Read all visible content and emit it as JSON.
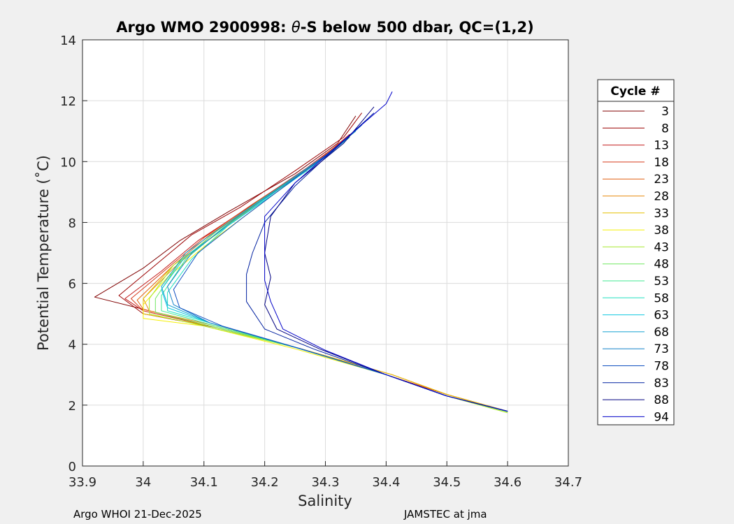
{
  "chart_data": {
    "type": "line",
    "title": "Argo WMO 2900998: θ-S below 500 dbar,  QC=(1,2)",
    "title_parts": {
      "prefix": "Argo WMO 2900998: ",
      "theta": "θ",
      "suffix": "-S below 500 dbar,  QC=(1,2)"
    },
    "xlabel": "Salinity",
    "ylabel": "Potential Temperature (˚C)",
    "xlim": [
      33.9,
      34.7
    ],
    "ylim": [
      0,
      14
    ],
    "xticks": [
      "33.9",
      "34",
      "34.1",
      "34.2",
      "34.3",
      "34.4",
      "34.5",
      "34.6",
      "34.7"
    ],
    "yticks": [
      "0",
      "2",
      "4",
      "6",
      "8",
      "10",
      "12",
      "14"
    ],
    "grid": true,
    "legend": {
      "title": "Cycle #",
      "placement": "outside-right",
      "entries": [
        {
          "label": "3",
          "color": "#800000"
        },
        {
          "label": "8",
          "color": "#9b0000"
        },
        {
          "label": "13",
          "color": "#c21a1a"
        },
        {
          "label": "18",
          "color": "#d63a1a"
        },
        {
          "label": "23",
          "color": "#e06010"
        },
        {
          "label": "28",
          "color": "#e88a10"
        },
        {
          "label": "33",
          "color": "#e6c000"
        },
        {
          "label": "38",
          "color": "#f5f000"
        },
        {
          "label": "43",
          "color": "#a8e830"
        },
        {
          "label": "48",
          "color": "#70e860"
        },
        {
          "label": "53",
          "color": "#40e890"
        },
        {
          "label": "58",
          "color": "#20e0c0"
        },
        {
          "label": "63",
          "color": "#10c8e0"
        },
        {
          "label": "68",
          "color": "#10a0d0"
        },
        {
          "label": "73",
          "color": "#1080c8"
        },
        {
          "label": "78",
          "color": "#1050c0"
        },
        {
          "label": "83",
          "color": "#0020a0"
        },
        {
          "label": "88",
          "color": "#000080"
        },
        {
          "label": "94",
          "color": "#0000c8"
        }
      ]
    },
    "series": [
      {
        "label": "3",
        "color": "#800000",
        "points": [
          [
            34.6,
            1.8
          ],
          [
            34.5,
            2.3
          ],
          [
            34.4,
            3.0
          ],
          [
            34.26,
            3.85
          ],
          [
            34.12,
            4.55
          ],
          [
            34.02,
            5.05
          ],
          [
            33.92,
            5.55
          ],
          [
            34.0,
            6.5
          ],
          [
            34.06,
            7.4
          ],
          [
            34.14,
            8.35
          ],
          [
            34.25,
            9.6
          ],
          [
            34.32,
            10.6
          ],
          [
            34.35,
            11.5
          ]
        ]
      },
      {
        "label": "8",
        "color": "#9b0000",
        "points": [
          [
            34.6,
            1.8
          ],
          [
            34.5,
            2.3
          ],
          [
            34.4,
            3.0
          ],
          [
            34.26,
            3.85
          ],
          [
            34.12,
            4.55
          ],
          [
            34.0,
            5.0
          ],
          [
            33.96,
            5.6
          ],
          [
            34.02,
            6.6
          ],
          [
            34.08,
            7.6
          ],
          [
            34.16,
            8.5
          ],
          [
            34.25,
            9.7
          ],
          [
            34.33,
            10.8
          ],
          [
            34.36,
            11.6
          ]
        ]
      },
      {
        "label": "13",
        "color": "#c21a1a",
        "points": [
          [
            34.6,
            1.8
          ],
          [
            34.5,
            2.35
          ],
          [
            34.4,
            3.0
          ],
          [
            34.26,
            3.85
          ],
          [
            34.12,
            4.55
          ],
          [
            34.0,
            5.1
          ],
          [
            33.97,
            5.5
          ],
          [
            34.03,
            6.4
          ],
          [
            34.09,
            7.4
          ],
          [
            34.17,
            8.45
          ],
          [
            34.27,
            9.8
          ],
          [
            34.33,
            10.7
          ],
          [
            34.37,
            11.4
          ]
        ]
      },
      {
        "label": "18",
        "color": "#d63a1a",
        "points": [
          [
            34.6,
            1.8
          ],
          [
            34.5,
            2.35
          ],
          [
            34.4,
            3.0
          ],
          [
            34.26,
            3.85
          ],
          [
            34.12,
            4.55
          ],
          [
            34.0,
            5.1
          ],
          [
            33.98,
            5.5
          ],
          [
            34.04,
            6.5
          ],
          [
            34.1,
            7.5
          ],
          [
            34.18,
            8.6
          ],
          [
            34.28,
            9.9
          ],
          [
            34.34,
            10.9
          ]
        ]
      },
      {
        "label": "23",
        "color": "#e06010",
        "points": [
          [
            34.6,
            1.8
          ],
          [
            34.5,
            2.35
          ],
          [
            34.41,
            3.0
          ],
          [
            34.26,
            3.85
          ],
          [
            34.12,
            4.55
          ],
          [
            34.0,
            5.15
          ],
          [
            33.99,
            5.45
          ],
          [
            34.05,
            6.6
          ],
          [
            34.11,
            7.6
          ],
          [
            34.19,
            8.7
          ],
          [
            34.28,
            9.9
          ],
          [
            34.35,
            11.0
          ]
        ]
      },
      {
        "label": "28",
        "color": "#e88a10",
        "points": [
          [
            34.6,
            1.8
          ],
          [
            34.5,
            2.35
          ],
          [
            34.41,
            3.0
          ],
          [
            34.26,
            3.85
          ],
          [
            34.12,
            4.6
          ],
          [
            34.01,
            5.1
          ],
          [
            34.0,
            5.5
          ],
          [
            34.05,
            6.5
          ],
          [
            34.12,
            7.7
          ],
          [
            34.2,
            8.8
          ],
          [
            34.29,
            10.0
          ],
          [
            34.34,
            10.8
          ]
        ]
      },
      {
        "label": "33",
        "color": "#e6c000",
        "points": [
          [
            34.6,
            1.8
          ],
          [
            34.5,
            2.35
          ],
          [
            34.41,
            3.0
          ],
          [
            34.26,
            3.85
          ],
          [
            34.11,
            4.6
          ],
          [
            34.0,
            5.0
          ],
          [
            34.0,
            5.5
          ],
          [
            34.05,
            6.6
          ],
          [
            34.12,
            7.6
          ],
          [
            34.2,
            8.8
          ],
          [
            34.28,
            9.9
          ]
        ]
      },
      {
        "label": "38",
        "color": "#f5f000",
        "points": [
          [
            34.6,
            1.75
          ],
          [
            34.5,
            2.3
          ],
          [
            34.4,
            3.0
          ],
          [
            34.25,
            3.85
          ],
          [
            34.1,
            4.6
          ],
          [
            34.0,
            4.85
          ],
          [
            34.0,
            5.3
          ],
          [
            34.04,
            6.2
          ],
          [
            34.1,
            7.2
          ],
          [
            34.18,
            8.4
          ],
          [
            34.24,
            9.3
          ]
        ]
      },
      {
        "label": "43",
        "color": "#a8e830",
        "points": [
          [
            34.6,
            1.75
          ],
          [
            34.5,
            2.3
          ],
          [
            34.4,
            3.0
          ],
          [
            34.25,
            3.9
          ],
          [
            34.1,
            4.6
          ],
          [
            34.01,
            5.0
          ],
          [
            34.01,
            5.5
          ],
          [
            34.05,
            6.6
          ],
          [
            34.12,
            7.6
          ],
          [
            34.19,
            8.7
          ],
          [
            34.24,
            9.3
          ]
        ]
      },
      {
        "label": "48",
        "color": "#70e860",
        "points": [
          [
            34.6,
            1.78
          ],
          [
            34.5,
            2.3
          ],
          [
            34.4,
            3.0
          ],
          [
            34.25,
            3.9
          ],
          [
            34.1,
            4.65
          ],
          [
            34.02,
            5.05
          ],
          [
            34.02,
            5.5
          ],
          [
            34.06,
            6.7
          ],
          [
            34.12,
            7.7
          ],
          [
            34.19,
            8.7
          ],
          [
            34.26,
            9.6
          ]
        ]
      },
      {
        "label": "53",
        "color": "#40e890",
        "points": [
          [
            34.6,
            1.8
          ],
          [
            34.5,
            2.3
          ],
          [
            34.4,
            3.0
          ],
          [
            34.25,
            3.9
          ],
          [
            34.11,
            4.65
          ],
          [
            34.03,
            5.1
          ],
          [
            34.03,
            5.6
          ],
          [
            34.07,
            6.8
          ],
          [
            34.13,
            7.8
          ],
          [
            34.2,
            8.8
          ],
          [
            34.27,
            9.7
          ]
        ]
      },
      {
        "label": "58",
        "color": "#20e0c0",
        "points": [
          [
            34.6,
            1.8
          ],
          [
            34.5,
            2.3
          ],
          [
            34.4,
            3.0
          ],
          [
            34.25,
            3.9
          ],
          [
            34.11,
            4.7
          ],
          [
            34.04,
            5.1
          ],
          [
            34.04,
            5.7
          ],
          [
            34.08,
            6.8
          ],
          [
            34.14,
            7.9
          ],
          [
            34.21,
            8.9
          ],
          [
            34.28,
            9.9
          ]
        ]
      },
      {
        "label": "63",
        "color": "#10c8e0",
        "points": [
          [
            34.6,
            1.8
          ],
          [
            34.5,
            2.3
          ],
          [
            34.4,
            3.0
          ],
          [
            34.25,
            3.9
          ],
          [
            34.11,
            4.7
          ],
          [
            34.04,
            5.2
          ],
          [
            34.03,
            5.8
          ],
          [
            34.07,
            6.9
          ],
          [
            34.14,
            7.9
          ],
          [
            34.22,
            9.0
          ],
          [
            34.29,
            10.0
          ],
          [
            34.34,
            10.8
          ]
        ]
      },
      {
        "label": "68",
        "color": "#10a0d0",
        "points": [
          [
            34.6,
            1.8
          ],
          [
            34.5,
            2.3
          ],
          [
            34.4,
            3.0
          ],
          [
            34.25,
            3.9
          ],
          [
            34.11,
            4.7
          ],
          [
            34.04,
            5.3
          ],
          [
            34.03,
            5.9
          ],
          [
            34.07,
            7.0
          ],
          [
            34.14,
            8.0
          ],
          [
            34.22,
            9.1
          ],
          [
            34.3,
            10.2
          ],
          [
            34.35,
            11.0
          ]
        ]
      },
      {
        "label": "73",
        "color": "#1080c8",
        "points": [
          [
            34.6,
            1.8
          ],
          [
            34.5,
            2.3
          ],
          [
            34.4,
            3.0
          ],
          [
            34.25,
            3.9
          ],
          [
            34.11,
            4.7
          ],
          [
            34.05,
            5.3
          ],
          [
            34.04,
            5.9
          ],
          [
            34.08,
            7.0
          ],
          [
            34.15,
            8.1
          ],
          [
            34.23,
            9.2
          ],
          [
            34.31,
            10.3
          ],
          [
            34.36,
            11.2
          ]
        ]
      },
      {
        "label": "78",
        "color": "#1050c0",
        "points": [
          [
            34.6,
            1.8
          ],
          [
            34.5,
            2.3
          ],
          [
            34.4,
            3.0
          ],
          [
            34.26,
            3.85
          ],
          [
            34.13,
            4.6
          ],
          [
            34.06,
            5.2
          ],
          [
            34.05,
            5.8
          ],
          [
            34.09,
            7.0
          ],
          [
            34.16,
            8.1
          ],
          [
            34.24,
            9.3
          ],
          [
            34.32,
            10.5
          ],
          [
            34.37,
            11.4
          ]
        ]
      },
      {
        "label": "83",
        "color": "#0020a0",
        "points": [
          [
            34.6,
            1.8
          ],
          [
            34.5,
            2.3
          ],
          [
            34.4,
            3.0
          ],
          [
            34.28,
            3.85
          ],
          [
            34.2,
            4.5
          ],
          [
            34.17,
            5.4
          ],
          [
            34.17,
            6.3
          ],
          [
            34.18,
            7.0
          ],
          [
            34.2,
            8.0
          ],
          [
            34.25,
            9.2
          ],
          [
            34.32,
            10.5
          ],
          [
            34.38,
            11.6
          ]
        ]
      },
      {
        "label": "88",
        "color": "#000080",
        "points": [
          [
            34.6,
            1.8
          ],
          [
            34.5,
            2.3
          ],
          [
            34.4,
            3.0
          ],
          [
            34.29,
            3.85
          ],
          [
            34.22,
            4.5
          ],
          [
            34.2,
            5.3
          ],
          [
            34.21,
            6.2
          ],
          [
            34.2,
            7.0
          ],
          [
            34.21,
            8.2
          ],
          [
            34.25,
            9.3
          ],
          [
            34.33,
            10.6
          ],
          [
            34.38,
            11.8
          ]
        ]
      },
      {
        "label": "94",
        "color": "#0000c8",
        "points": [
          [
            34.6,
            1.8
          ],
          [
            34.5,
            2.3
          ],
          [
            34.4,
            3.0
          ],
          [
            34.3,
            3.8
          ],
          [
            34.23,
            4.5
          ],
          [
            34.21,
            5.4
          ],
          [
            34.2,
            6.1
          ],
          [
            34.2,
            7.0
          ],
          [
            34.2,
            8.2
          ],
          [
            34.25,
            9.3
          ],
          [
            34.33,
            10.7
          ],
          [
            34.4,
            11.9
          ],
          [
            34.41,
            12.3
          ]
        ]
      }
    ]
  },
  "footer": {
    "left": "Argo WHOI 21-Dec-2025",
    "right": "JAMSTEC at jma"
  }
}
